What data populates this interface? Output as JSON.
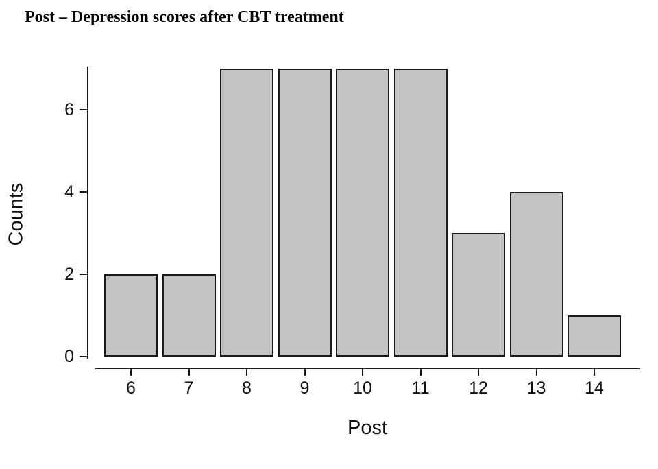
{
  "chart_data": {
    "type": "bar",
    "title": "Post – Depression scores after CBT treatment",
    "categories": [
      "6",
      "7",
      "8",
      "9",
      "10",
      "11",
      "12",
      "13",
      "14"
    ],
    "values": [
      2,
      2,
      7,
      7,
      7,
      7,
      3,
      4,
      1
    ],
    "xlabel": "Post",
    "ylabel": "Counts",
    "y_ticks": [
      0,
      2,
      4,
      6
    ],
    "ylim": [
      0,
      7.1
    ],
    "grid": false,
    "legend": false,
    "bar_fill": "#c3c3c3",
    "bar_stroke": "#1a1a1a",
    "axis_color": "#1a1a1a"
  }
}
